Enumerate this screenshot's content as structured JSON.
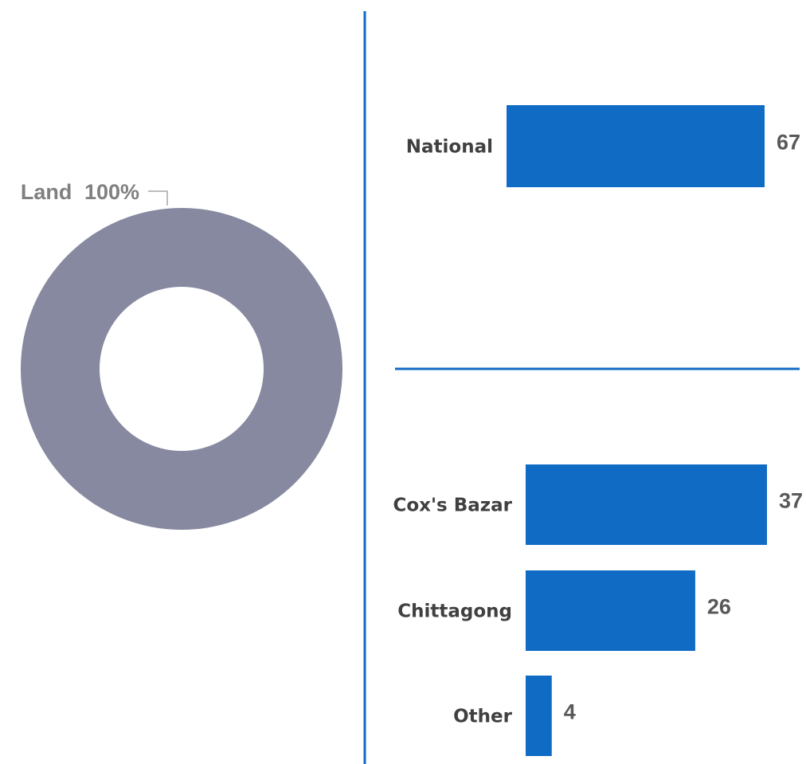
{
  "chart_data": [
    {
      "type": "pie",
      "variant": "donut",
      "slices": [
        {
          "label": "Land",
          "value": 100,
          "percent_label": "100%",
          "color": "#8689a0"
        }
      ]
    },
    {
      "type": "bar",
      "orientation": "horizontal",
      "categories": [
        "National"
      ],
      "values": [
        67
      ],
      "color": "#0f6bc4"
    },
    {
      "type": "bar",
      "orientation": "horizontal",
      "categories": [
        "Cox's Bazar",
        "Chittagong",
        "Other"
      ],
      "values": [
        37,
        26,
        4
      ],
      "color": "#0f6bc4"
    }
  ],
  "colors": {
    "divider": "#0f6bc4",
    "leader_line": "#a6a6a6"
  }
}
